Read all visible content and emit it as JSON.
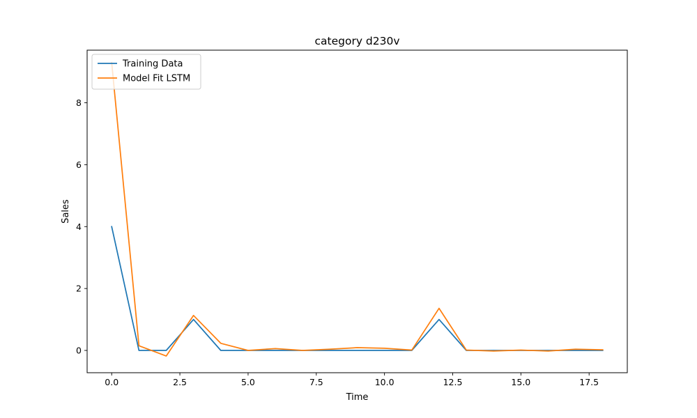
{
  "chart_data": {
    "type": "line",
    "title": "category d230v",
    "xlabel": "Time",
    "ylabel": "Sales",
    "xlim": [
      -0.9,
      18.9
    ],
    "ylim": [
      -0.72,
      9.7
    ],
    "x_ticks": [
      0.0,
      2.5,
      5.0,
      7.5,
      10.0,
      12.5,
      15.0,
      17.5
    ],
    "x_tick_labels": [
      "0.0",
      "2.5",
      "5.0",
      "7.5",
      "10.0",
      "12.5",
      "15.0",
      "17.5"
    ],
    "y_ticks": [
      0,
      2,
      4,
      6,
      8
    ],
    "y_tick_labels": [
      "0",
      "2",
      "4",
      "6",
      "8"
    ],
    "grid": false,
    "legend_position": "upper-left",
    "x": [
      0,
      1,
      2,
      3,
      4,
      5,
      6,
      7,
      8,
      9,
      10,
      11,
      12,
      13,
      14,
      15,
      16,
      17,
      18
    ],
    "series": [
      {
        "name": "Training Data",
        "color": "#1f77b4",
        "values": [
          4,
          0,
          0,
          1,
          0,
          0,
          0,
          0,
          0,
          0,
          0,
          0,
          1,
          0,
          0,
          0,
          0,
          0,
          0
        ]
      },
      {
        "name": "Model Fit LSTM",
        "color": "#ff7f0e",
        "values": [
          9.3,
          0.15,
          -0.18,
          1.13,
          0.23,
          0.0,
          0.06,
          0.0,
          0.04,
          0.09,
          0.07,
          0.01,
          1.36,
          0.01,
          -0.02,
          0.01,
          -0.02,
          0.04,
          0.02
        ]
      }
    ]
  }
}
